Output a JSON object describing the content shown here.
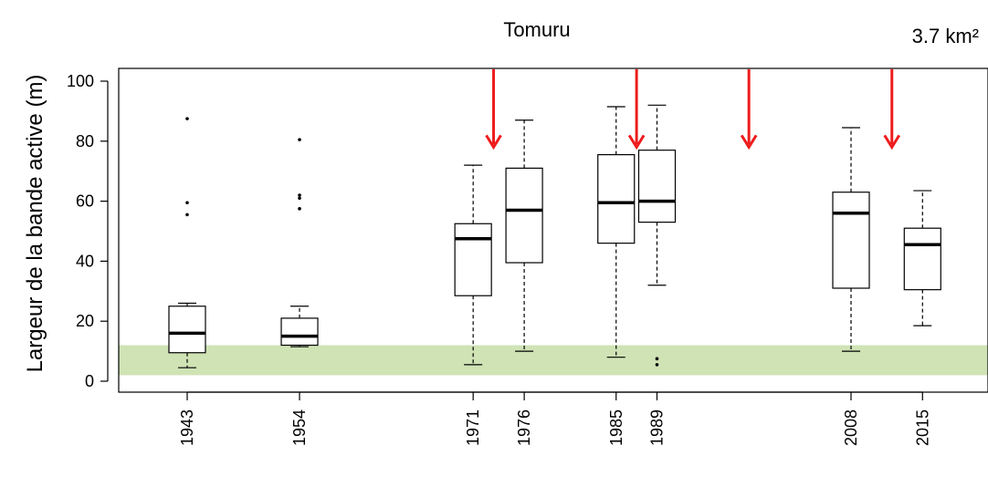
{
  "chart_data": {
    "type": "boxplot",
    "title": "Tomuru",
    "annotation": "3.7 km²",
    "ylabel": "Largeur de la bande active (m)",
    "ylim": [
      -4,
      104
    ],
    "yticks": [
      0,
      20,
      40,
      60,
      80,
      100
    ],
    "grid": false,
    "reference_band": {
      "y_from": 2,
      "y_to": 12,
      "color": "#cfe3b5"
    },
    "colors": {
      "arrow": "#ee1c1c",
      "box_stroke": "#000000",
      "axis": "#000000"
    },
    "arrows": [
      {
        "year": 1973
      },
      {
        "year": 1987
      },
      {
        "year": 1998
      },
      {
        "year": 2012
      }
    ],
    "boxes": [
      {
        "label": "1943",
        "year": 1943,
        "whisker_low": 4.5,
        "q1": 9.5,
        "median": 16,
        "q3": 25,
        "whisker_high": 26,
        "outliers": [
          55.5,
          59.5,
          87.5
        ]
      },
      {
        "label": "1954",
        "year": 1954,
        "whisker_low": 11.5,
        "q1": 12,
        "median": 15,
        "q3": 21,
        "whisker_high": 25,
        "outliers": [
          57.5,
          62,
          61,
          80.5
        ]
      },
      {
        "label": "1971",
        "year": 1971,
        "whisker_low": 5.5,
        "q1": 28.5,
        "median": 47.5,
        "q3": 52.5,
        "whisker_high": 72,
        "outliers": []
      },
      {
        "label": "1976",
        "year": 1976,
        "whisker_low": 10,
        "q1": 39.5,
        "median": 57,
        "q3": 71,
        "whisker_high": 87,
        "outliers": []
      },
      {
        "label": "1985",
        "year": 1985,
        "whisker_low": 8,
        "q1": 46,
        "median": 59.5,
        "q3": 75.5,
        "whisker_high": 91.5,
        "outliers": []
      },
      {
        "label": "1989",
        "year": 1989,
        "whisker_low": 32,
        "q1": 53,
        "median": 60,
        "q3": 77,
        "whisker_high": 92,
        "outliers": [
          5.5,
          7.5
        ]
      },
      {
        "label": "2008",
        "year": 2008,
        "whisker_low": 10,
        "q1": 31,
        "median": 56,
        "q3": 63,
        "whisker_high": 84.5,
        "outliers": []
      },
      {
        "label": "2015",
        "year": 2015,
        "whisker_low": 18.5,
        "q1": 30.5,
        "median": 45.5,
        "q3": 51,
        "whisker_high": 63.5,
        "outliers": []
      }
    ]
  }
}
